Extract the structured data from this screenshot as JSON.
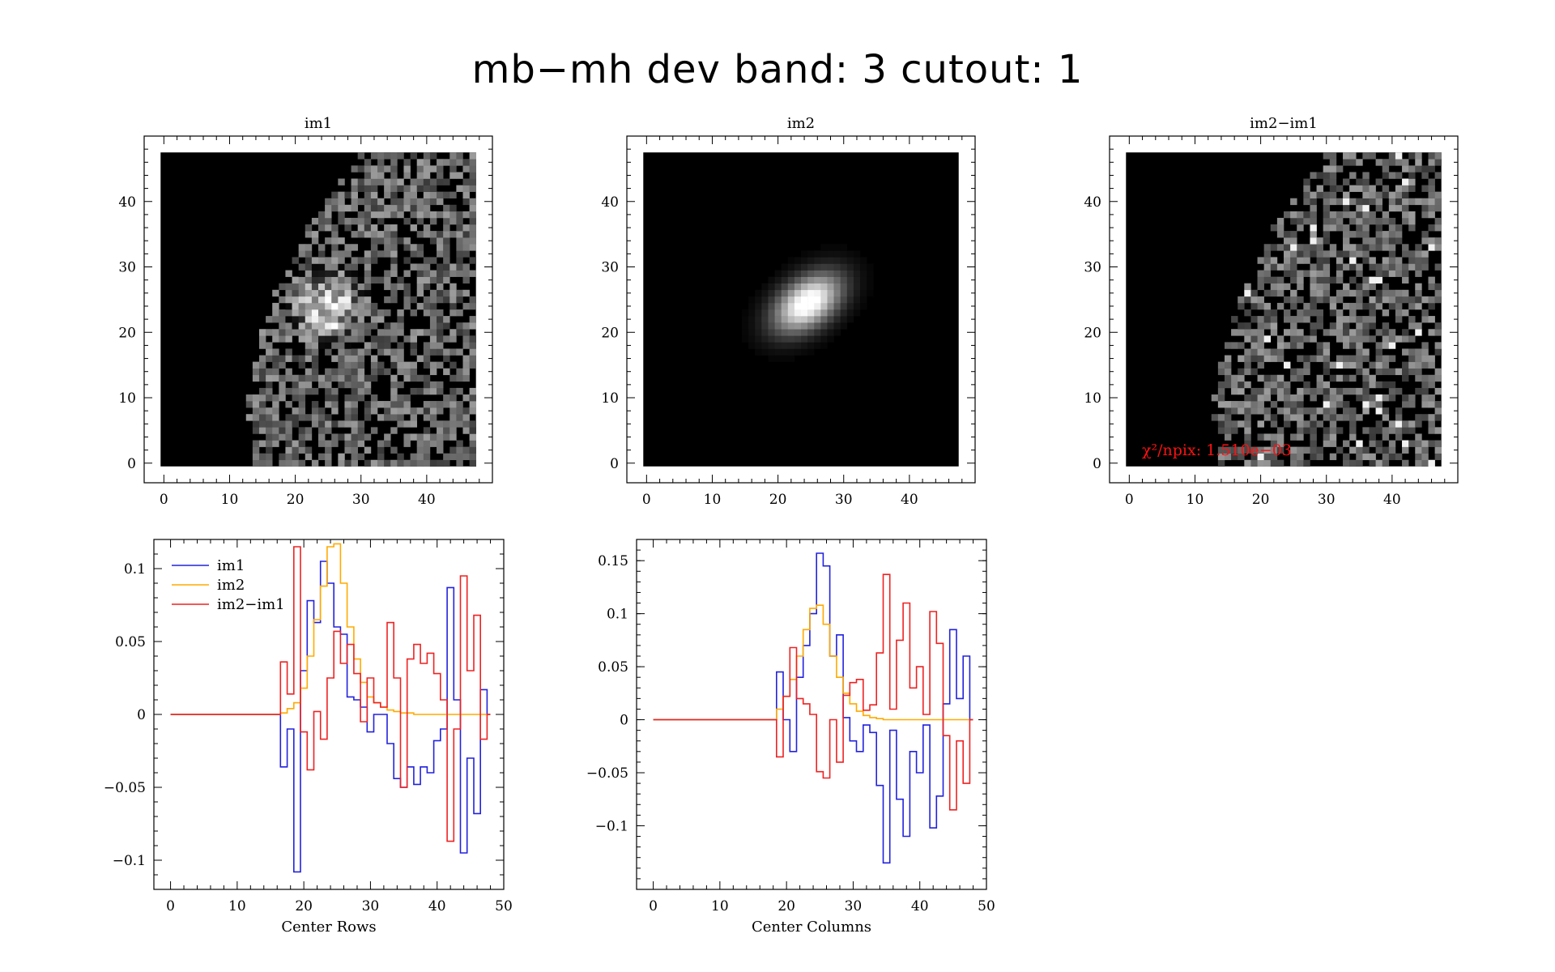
{
  "title": "mb−mh dev band: 3 cutout: 1",
  "colors": {
    "im1": "#2222dd",
    "im2": "#ffaa00",
    "diff": "#ee2222",
    "chi": "#ff1111",
    "axis": "#000000",
    "image_bg": "#000000"
  },
  "images": [
    {
      "title": "im1",
      "xticks": [
        "0",
        "10",
        "20",
        "30",
        "40"
      ],
      "yticks": [
        "0",
        "10",
        "20",
        "30",
        "40"
      ],
      "xlim": [
        -3,
        50
      ],
      "ylim": [
        -3,
        50
      ],
      "grid": 48,
      "kind": "noise_blob",
      "edge": [
        30,
        26,
        22,
        20,
        17,
        15,
        14,
        13,
        13,
        14
      ],
      "blob_center": [
        25,
        24
      ],
      "blob_sigma": 2.5,
      "blob_amp": 0.9,
      "annotation": ""
    },
    {
      "title": "im2",
      "xticks": [
        "0",
        "10",
        "20",
        "30",
        "40"
      ],
      "yticks": [
        "0",
        "10",
        "20",
        "30",
        "40"
      ],
      "xlim": [
        -3,
        50
      ],
      "ylim": [
        -3,
        50
      ],
      "grid": 48,
      "kind": "model",
      "edge": [
        30,
        26,
        22,
        20,
        17,
        15,
        14,
        13,
        13,
        14
      ],
      "blob_center": [
        24.5,
        24.5
      ],
      "blob_sigma": 3.2,
      "blob_amp": 1.0,
      "annotation": ""
    },
    {
      "title": "im2−im1",
      "xticks": [
        "0",
        "10",
        "20",
        "30",
        "40"
      ],
      "yticks": [
        "0",
        "10",
        "20",
        "30",
        "40"
      ],
      "xlim": [
        -3,
        50
      ],
      "ylim": [
        -3,
        50
      ],
      "grid": 48,
      "kind": "noise",
      "edge": [
        30,
        26,
        22,
        20,
        17,
        15,
        14,
        13,
        13,
        14
      ],
      "blob_center": [
        25,
        24
      ],
      "blob_sigma": 0,
      "blob_amp": 0,
      "annotation": "χ²/npix: 1.510e−03"
    }
  ],
  "chart_data": [
    {
      "type": "line",
      "step": true,
      "xlabel": "Center Rows",
      "ylabel": "",
      "xlim": [
        -2.5,
        50
      ],
      "ylim": [
        -0.12,
        0.12
      ],
      "xticks": [
        0,
        10,
        20,
        30,
        40,
        50
      ],
      "xtick_labels": [
        "0",
        "10",
        "20",
        "30",
        "40",
        "50"
      ],
      "yticks": [
        -0.1,
        -0.05,
        0,
        0.05,
        0.1
      ],
      "ytick_labels": [
        "−0.1",
        "−0.05",
        "0",
        "0.05",
        "0.1"
      ],
      "legend": "top-left",
      "x": [
        0,
        1,
        2,
        3,
        4,
        5,
        6,
        7,
        8,
        9,
        10,
        11,
        12,
        13,
        14,
        15,
        16,
        17,
        18,
        19,
        20,
        21,
        22,
        23,
        24,
        25,
        26,
        27,
        28,
        29,
        30,
        31,
        32,
        33,
        34,
        35,
        36,
        37,
        38,
        39,
        40,
        41,
        42,
        43,
        44,
        45,
        46,
        47,
        48
      ],
      "series": [
        {
          "name": "im1",
          "color_key": "im1",
          "values": [
            0,
            0,
            0,
            0,
            0,
            0,
            0,
            0,
            0,
            0,
            0,
            0,
            0,
            0,
            0,
            0,
            0,
            -0.036,
            -0.01,
            -0.108,
            0.03,
            0.078,
            0.063,
            0.105,
            0.09,
            0.06,
            0.055,
            0.012,
            0.01,
            0.005,
            -0.012,
            0.0,
            0.0,
            -0.02,
            -0.044,
            -0.05,
            -0.036,
            -0.048,
            -0.036,
            -0.04,
            -0.018,
            -0.01,
            0.087,
            0.01,
            -0.095,
            -0.03,
            -0.068,
            0.017,
            0.0
          ]
        },
        {
          "name": "im2",
          "color_key": "im2",
          "values": [
            0,
            0,
            0,
            0,
            0,
            0,
            0,
            0,
            0,
            0,
            0,
            0,
            0,
            0,
            0,
            0,
            0,
            0.001,
            0.004,
            0.008,
            0.018,
            0.04,
            0.065,
            0.088,
            0.115,
            0.117,
            0.09,
            0.06,
            0.038,
            0.022,
            0.012,
            0.008,
            0.005,
            0.003,
            0.002,
            0.001,
            0.001,
            0,
            0,
            0,
            0,
            0,
            0,
            0,
            0,
            0,
            0,
            0,
            0
          ]
        },
        {
          "name": "im2−im1",
          "color_key": "diff",
          "values": [
            0,
            0,
            0,
            0,
            0,
            0,
            0,
            0,
            0,
            0,
            0,
            0,
            0,
            0,
            0,
            0,
            0,
            0.036,
            0.014,
            0.115,
            -0.012,
            -0.038,
            0.002,
            -0.017,
            0.025,
            0.057,
            0.035,
            0.048,
            0.028,
            -0.005,
            0.025,
            0.008,
            0.005,
            0.063,
            0.025,
            -0.05,
            0.038,
            0.048,
            0.035,
            0.042,
            0.028,
            0.01,
            -0.087,
            -0.01,
            0.095,
            0.03,
            0.068,
            -0.017,
            0.0
          ]
        }
      ]
    },
    {
      "type": "line",
      "step": true,
      "xlabel": "Center Columns",
      "ylabel": "",
      "xlim": [
        -2.5,
        50
      ],
      "ylim": [
        -0.16,
        0.17
      ],
      "xticks": [
        0,
        10,
        20,
        30,
        40,
        50
      ],
      "xtick_labels": [
        "0",
        "10",
        "20",
        "30",
        "40",
        "50"
      ],
      "yticks": [
        -0.1,
        -0.05,
        0,
        0.05,
        0.1,
        0.15
      ],
      "ytick_labels": [
        "−0.1",
        "−0.05",
        "0",
        "0.05",
        "0.1",
        "0.15"
      ],
      "legend": "none",
      "x": [
        0,
        1,
        2,
        3,
        4,
        5,
        6,
        7,
        8,
        9,
        10,
        11,
        12,
        13,
        14,
        15,
        16,
        17,
        18,
        19,
        20,
        21,
        22,
        23,
        24,
        25,
        26,
        27,
        28,
        29,
        30,
        31,
        32,
        33,
        34,
        35,
        36,
        37,
        38,
        39,
        40,
        41,
        42,
        43,
        44,
        45,
        46,
        47,
        48
      ],
      "series": [
        {
          "name": "im1",
          "color_key": "im1",
          "values": [
            0,
            0,
            0,
            0,
            0,
            0,
            0,
            0,
            0,
            0,
            0,
            0,
            0,
            0,
            0,
            0,
            0,
            0,
            0,
            0.045,
            0.0,
            -0.03,
            0.04,
            0.07,
            0.1,
            0.157,
            0.145,
            0.06,
            0.08,
            0.002,
            -0.02,
            -0.03,
            -0.005,
            -0.012,
            -0.062,
            -0.135,
            -0.01,
            -0.075,
            -0.11,
            -0.03,
            -0.05,
            -0.005,
            -0.102,
            -0.072,
            0.015,
            0.085,
            0.02,
            0.06,
            0.0
          ]
        },
        {
          "name": "im2",
          "color_key": "im2",
          "values": [
            0,
            0,
            0,
            0,
            0,
            0,
            0,
            0,
            0,
            0,
            0,
            0,
            0,
            0,
            0,
            0,
            0,
            0,
            0,
            0.01,
            0.022,
            0.038,
            0.06,
            0.085,
            0.105,
            0.108,
            0.09,
            0.06,
            0.04,
            0.025,
            0.015,
            0.008,
            0.004,
            0.002,
            0.001,
            0,
            0,
            0,
            0,
            0,
            0,
            0,
            0,
            0,
            0,
            0,
            0,
            0,
            0
          ]
        },
        {
          "name": "im2−im1",
          "color_key": "diff",
          "values": [
            0,
            0,
            0,
            0,
            0,
            0,
            0,
            0,
            0,
            0,
            0,
            0,
            0,
            0,
            0,
            0,
            0,
            0,
            0,
            -0.035,
            0.022,
            0.068,
            0.02,
            0.015,
            0.005,
            -0.049,
            -0.055,
            0.0,
            -0.04,
            0.023,
            0.035,
            0.038,
            0.009,
            0.014,
            0.063,
            0.137,
            0.01,
            0.075,
            0.11,
            0.03,
            0.05,
            0.005,
            0.102,
            0.072,
            -0.015,
            -0.085,
            -0.02,
            -0.06,
            0.0
          ]
        }
      ]
    }
  ]
}
